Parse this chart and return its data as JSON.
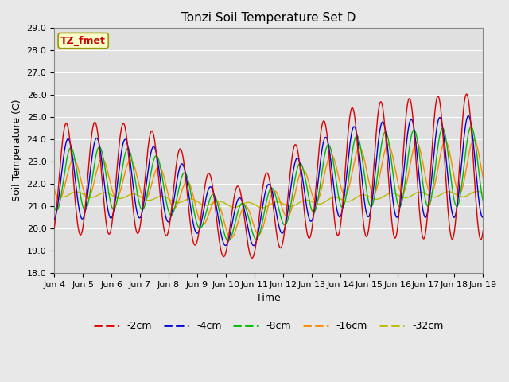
{
  "title": "Tonzi Soil Temperature Set D",
  "xlabel": "Time",
  "ylabel": "Soil Temperature (C)",
  "ylim": [
    18.0,
    29.0
  ],
  "yticks": [
    18.0,
    19.0,
    20.0,
    21.0,
    22.0,
    23.0,
    24.0,
    25.0,
    26.0,
    27.0,
    28.0,
    29.0
  ],
  "xtick_labels": [
    "Jun 4",
    "Jun 5",
    "Jun 6",
    "Jun 7",
    "Jun 8",
    "Jun 9",
    "Jun 10",
    "Jun 11",
    "Jun 12",
    "Jun 13",
    "Jun 14",
    "Jun 15",
    "Jun 16",
    "Jun 17",
    "Jun 18",
    "Jun 19"
  ],
  "legend_labels": [
    "-2cm",
    "-4cm",
    "-8cm",
    "-16cm",
    "-32cm"
  ],
  "legend_colors": [
    "#dd0000",
    "#0000dd",
    "#00bb00",
    "#ff8800",
    "#bbbb00"
  ],
  "annotation_text": "TZ_fmet",
  "annotation_color": "#cc0000",
  "annotation_bg": "#ffffcc",
  "fig_bg": "#e8e8e8",
  "plot_bg": "#e0e0e0",
  "grid_color": "#ffffff",
  "title_fontsize": 11,
  "label_fontsize": 9,
  "tick_fontsize": 8
}
